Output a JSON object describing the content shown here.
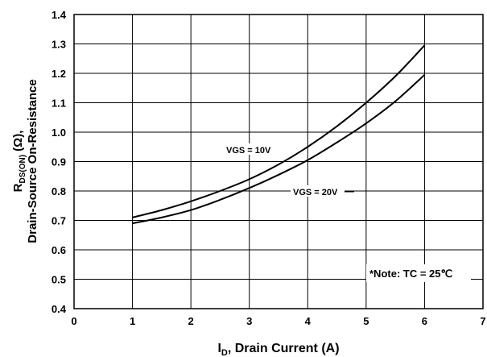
{
  "chart_data": {
    "type": "line",
    "title": "",
    "xlabel_main": "I",
    "xlabel_sub": "D",
    "xlabel_rest": ", Drain Current (A)",
    "ylabel_line1_main": "R",
    "ylabel_line1_sub": "DS(ON)",
    "ylabel_line1_rest": " (Ω),",
    "ylabel_line2": "Drain-Source On-Resistance",
    "xlim": [
      0,
      7
    ],
    "ylim": [
      0.4,
      1.4
    ],
    "grid": true,
    "x_ticks": [
      "0",
      "1",
      "2",
      "3",
      "4",
      "5",
      "6",
      "7"
    ],
    "y_ticks": [
      "0.4",
      "0.5",
      "0.6",
      "0.7",
      "0.8",
      "0.9",
      "1.0",
      "1.1",
      "1.2",
      "1.3",
      "1.4"
    ],
    "series": [
      {
        "name": "VGS = 10V",
        "color": "#000000",
        "x": [
          1,
          1.5,
          2,
          2.5,
          3,
          3.5,
          4,
          4.5,
          5,
          5.5,
          6
        ],
        "y": [
          0.71,
          0.735,
          0.765,
          0.8,
          0.84,
          0.89,
          0.95,
          1.02,
          1.1,
          1.19,
          1.295
        ]
      },
      {
        "name": "VGS = 20V",
        "color": "#000000",
        "x": [
          1,
          1.5,
          2,
          2.5,
          3,
          3.5,
          4,
          4.5,
          5,
          5.5,
          6
        ],
        "y": [
          0.69,
          0.71,
          0.735,
          0.77,
          0.81,
          0.855,
          0.905,
          0.965,
          1.03,
          1.105,
          1.195
        ]
      }
    ],
    "note": "*Note: TC = 25℃"
  }
}
